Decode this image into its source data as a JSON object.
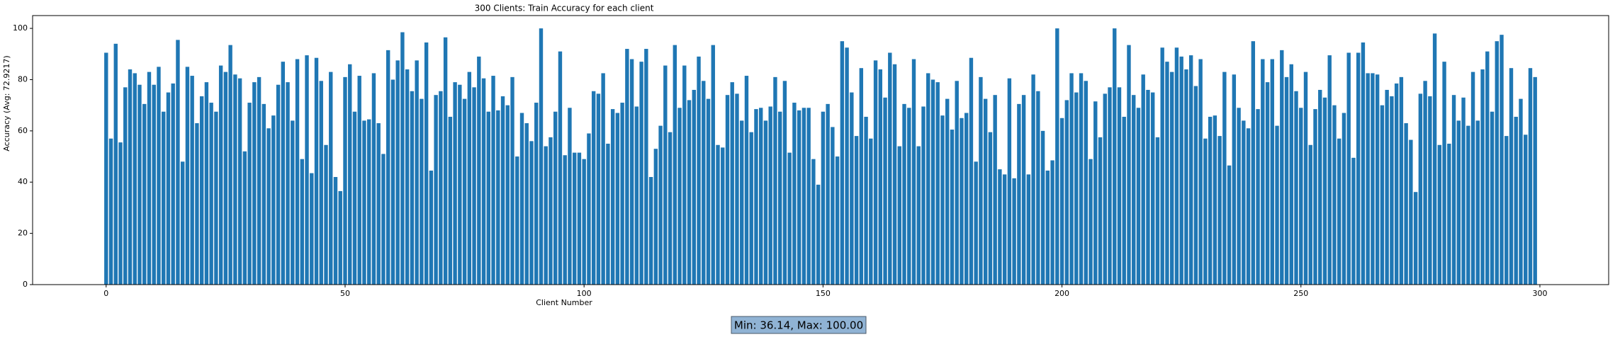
{
  "chart_data": {
    "type": "bar",
    "title": "300 Clients: Train Accuracy for each client",
    "x_label": "Client Number",
    "y_label": "Accuracy (Avg: 72.9217)",
    "annotation": "Min: 36.14, Max: 100.00",
    "color": "#1f77b4",
    "bar_width": 0.8,
    "grid": false,
    "xlim": [
      -15.39,
      314.39
    ],
    "ylim": [
      0,
      105
    ],
    "xticks": [
      0,
      50,
      100,
      150,
      200,
      250,
      300
    ],
    "yticks": [
      0,
      20,
      40,
      60,
      80,
      100
    ],
    "x": [
      0,
      1,
      2,
      3,
      4,
      5,
      6,
      7,
      8,
      9,
      10,
      11,
      12,
      13,
      14,
      15,
      16,
      17,
      18,
      19,
      20,
      21,
      22,
      23,
      24,
      25,
      26,
      27,
      28,
      29,
      30,
      31,
      32,
      33,
      34,
      35,
      36,
      37,
      38,
      39,
      40,
      41,
      42,
      43,
      44,
      45,
      46,
      47,
      48,
      49,
      50,
      51,
      52,
      53,
      54,
      55,
      56,
      57,
      58,
      59,
      60,
      61,
      62,
      63,
      64,
      65,
      66,
      67,
      68,
      69,
      70,
      71,
      72,
      73,
      74,
      75,
      76,
      77,
      78,
      79,
      80,
      81,
      82,
      83,
      84,
      85,
      86,
      87,
      88,
      89,
      90,
      91,
      92,
      93,
      94,
      95,
      96,
      97,
      98,
      99,
      100,
      101,
      102,
      103,
      104,
      105,
      106,
      107,
      108,
      109,
      110,
      111,
      112,
      113,
      114,
      115,
      116,
      117,
      118,
      119,
      120,
      121,
      122,
      123,
      124,
      125,
      126,
      127,
      128,
      129,
      130,
      131,
      132,
      133,
      134,
      135,
      136,
      137,
      138,
      139,
      140,
      141,
      142,
      143,
      144,
      145,
      146,
      147,
      148,
      149,
      150,
      151,
      152,
      153,
      154,
      155,
      156,
      157,
      158,
      159,
      160,
      161,
      162,
      163,
      164,
      165,
      166,
      167,
      168,
      169,
      170,
      171,
      172,
      173,
      174,
      175,
      176,
      177,
      178,
      179,
      180,
      181,
      182,
      183,
      184,
      185,
      186,
      187,
      188,
      189,
      190,
      191,
      192,
      193,
      194,
      195,
      196,
      197,
      198,
      199,
      200,
      201,
      202,
      203,
      204,
      205,
      206,
      207,
      208,
      209,
      210,
      211,
      212,
      213,
      214,
      215,
      216,
      217,
      218,
      219,
      220,
      221,
      222,
      223,
      224,
      225,
      226,
      227,
      228,
      229,
      230,
      231,
      232,
      233,
      234,
      235,
      236,
      237,
      238,
      239,
      240,
      241,
      242,
      243,
      244,
      245,
      246,
      247,
      248,
      249,
      250,
      251,
      252,
      253,
      254,
      255,
      256,
      257,
      258,
      259,
      260,
      261,
      262,
      263,
      264,
      265,
      266,
      267,
      268,
      269,
      270,
      271,
      272,
      273,
      274,
      275,
      276,
      277,
      278,
      279,
      280,
      281,
      282,
      283,
      284,
      285,
      286,
      287,
      288,
      289,
      290,
      291,
      292,
      293,
      294,
      295,
      296,
      297,
      298,
      299
    ],
    "values": [
      90.5,
      57,
      94,
      55.5,
      77,
      84,
      82.5,
      78,
      70.5,
      83,
      78,
      85,
      67.5,
      75,
      78.5,
      95.5,
      48,
      85,
      81.5,
      63,
      73.5,
      79,
      71,
      67.5,
      85.5,
      83,
      93.5,
      82,
      80.5,
      52,
      71,
      79,
      81,
      70.5,
      61,
      66,
      78,
      87,
      79,
      64,
      88,
      49,
      89.5,
      43.5,
      88.5,
      79.5,
      54.5,
      83,
      42,
      36.5,
      81,
      86,
      67.5,
      81.5,
      64,
      64.5,
      82.5,
      63,
      51,
      91.5,
      80,
      87.5,
      98.5,
      84,
      75.5,
      87.5,
      72.5,
      94.5,
      44.5,
      74,
      75.5,
      96.5,
      65.5,
      79,
      78,
      72.5,
      83,
      77,
      89,
      80.5,
      67.5,
      81.5,
      68,
      73.5,
      70,
      81,
      50,
      67,
      63,
      56,
      71,
      100,
      54,
      57.5,
      67.5,
      91,
      50.5,
      69,
      51.5,
      51.5,
      49,
      59,
      75.5,
      74.5,
      82.5,
      55,
      68.5,
      67,
      71,
      92,
      88,
      69.5,
      87,
      92,
      42,
      53,
      62,
      85.5,
      59.5,
      93.5,
      69,
      85.5,
      72,
      76,
      89,
      79.5,
      72.5,
      93.5,
      54.5,
      53.5,
      74,
      79,
      74.5,
      64,
      81.5,
      59.5,
      68.5,
      69,
      64,
      69.5,
      81,
      67.5,
      79.5,
      51.5,
      71,
      68,
      69,
      69,
      49,
      39,
      67.5,
      70.5,
      61.5,
      50,
      95,
      92.5,
      75,
      58,
      84.5,
      65.5,
      57,
      87.5,
      84,
      73,
      90.5,
      86,
      54,
      70.5,
      69,
      88,
      54,
      69.5,
      82.5,
      80,
      79,
      66,
      72.5,
      60.5,
      79.5,
      65,
      67,
      88.5,
      48,
      81,
      72.5,
      59.5,
      74,
      45,
      43,
      80.5,
      41.5,
      70.5,
      74,
      43,
      82,
      75.5,
      60,
      44.5,
      48.5,
      100,
      65,
      72,
      82.5,
      75,
      82.5,
      79.5,
      49,
      71.5,
      57.5,
      74.5,
      77,
      100,
      77,
      65.5,
      93.5,
      74,
      69,
      82,
      76,
      75,
      57.5,
      92.5,
      87,
      83,
      92.5,
      89,
      84,
      89.5,
      77.5,
      88,
      57,
      65.5,
      66,
      58,
      83,
      46.5,
      82,
      69,
      64,
      61,
      95,
      68.5,
      88,
      79,
      88,
      62,
      91.5,
      81,
      86,
      75.5,
      69,
      83,
      54.5,
      68.5,
      76,
      73,
      89.5,
      70,
      57,
      67,
      90.5,
      49.5,
      90.5,
      94.5,
      82.5,
      82.5,
      82,
      70,
      76,
      73.5,
      78.5,
      81,
      63,
      56.5,
      36.14,
      74.5,
      79.5,
      73.5,
      98,
      54.5,
      87,
      55,
      74,
      64,
      73,
      62,
      83,
      64,
      84,
      91,
      67.5,
      95,
      97.5,
      58,
      84.5,
      65.5,
      72.5,
      58.5,
      84.5,
      81
    ]
  }
}
